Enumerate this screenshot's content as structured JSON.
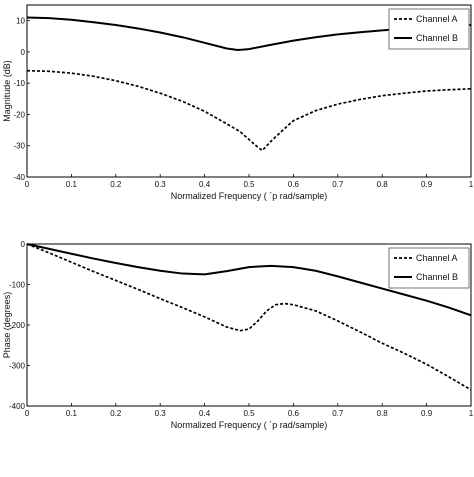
{
  "chart_data": [
    {
      "type": "line",
      "xlabel": "Normalized Frequency (  ´p rad/sample)",
      "ylabel": "Magnitude (dB)",
      "xlim": [
        0,
        1
      ],
      "ylim": [
        -40,
        15
      ],
      "x_ticks": [
        "0",
        "0.1",
        "0.2",
        "0.3",
        "0.4",
        "0.5",
        "0.6",
        "0.7",
        "0.8",
        "0.9",
        "1"
      ],
      "y_ticks": [
        "10",
        "0",
        "-10",
        "-20",
        "-30",
        "-40"
      ],
      "y_tick_values": [
        10,
        0,
        -10,
        -20,
        -30,
        -40
      ],
      "grid": false,
      "legend_position": "top-right",
      "series": [
        {
          "name": "Channel A",
          "style": "dashed",
          "x": [
            0,
            0.05,
            0.1,
            0.15,
            0.2,
            0.25,
            0.3,
            0.35,
            0.4,
            0.45,
            0.48,
            0.5,
            0.52,
            0.53,
            0.55,
            0.58,
            0.6,
            0.65,
            0.7,
            0.75,
            0.8,
            0.85,
            0.9,
            0.95,
            1.0
          ],
          "y": [
            -6,
            -6.2,
            -6.8,
            -7.8,
            -9.2,
            -11,
            -13.2,
            -15.8,
            -19,
            -23,
            -25.5,
            -28,
            -30.5,
            -31.5,
            -28.5,
            -24.5,
            -22,
            -18.8,
            -16.7,
            -15.2,
            -14,
            -13.2,
            -12.5,
            -12.1,
            -11.8
          ]
        },
        {
          "name": "Channel B",
          "style": "solid",
          "x": [
            0,
            0.05,
            0.1,
            0.15,
            0.2,
            0.25,
            0.3,
            0.35,
            0.4,
            0.45,
            0.475,
            0.5,
            0.55,
            0.6,
            0.65,
            0.7,
            0.75,
            0.8,
            0.85,
            0.9,
            0.95,
            1.0
          ],
          "y": [
            11,
            10.8,
            10.3,
            9.5,
            8.6,
            7.5,
            6.2,
            4.7,
            2.9,
            1.1,
            0.6,
            0.9,
            2.3,
            3.6,
            4.7,
            5.6,
            6.3,
            6.9,
            7.4,
            7.8,
            8.2,
            8.6
          ]
        }
      ]
    },
    {
      "type": "line",
      "xlabel": "Normalized Frequency (  ´p rad/sample)",
      "ylabel": "Phase (degrees)",
      "xlim": [
        0,
        1
      ],
      "ylim": [
        -400,
        0
      ],
      "x_ticks": [
        "0",
        "0.1",
        "0.2",
        "0.3",
        "0.4",
        "0.5",
        "0.6",
        "0.7",
        "0.8",
        "0.9",
        "1"
      ],
      "y_ticks": [
        "0",
        "-100",
        "-200",
        "-300",
        "-400"
      ],
      "y_tick_values": [
        0,
        -100,
        -200,
        -300,
        -400
      ],
      "grid": false,
      "legend_position": "top-right",
      "series": [
        {
          "name": "Channel A",
          "style": "dashed",
          "x": [
            0,
            0.05,
            0.1,
            0.15,
            0.2,
            0.25,
            0.3,
            0.35,
            0.4,
            0.45,
            0.48,
            0.5,
            0.52,
            0.54,
            0.56,
            0.58,
            0.6,
            0.65,
            0.7,
            0.75,
            0.8,
            0.85,
            0.9,
            0.95,
            1.0
          ],
          "y": [
            0,
            -22,
            -45,
            -68,
            -90,
            -112,
            -135,
            -157,
            -180,
            -205,
            -214,
            -210,
            -190,
            -165,
            -150,
            -147,
            -150,
            -165,
            -190,
            -217,
            -245,
            -270,
            -297,
            -328,
            -360
          ]
        },
        {
          "name": "Channel B",
          "style": "solid",
          "x": [
            0,
            0.05,
            0.1,
            0.15,
            0.2,
            0.25,
            0.3,
            0.35,
            0.4,
            0.45,
            0.5,
            0.55,
            0.6,
            0.65,
            0.7,
            0.75,
            0.8,
            0.85,
            0.9,
            0.95,
            1.0
          ],
          "y": [
            0,
            -12,
            -24,
            -36,
            -47,
            -57,
            -66,
            -73,
            -75,
            -67,
            -57,
            -54,
            -57,
            -66,
            -80,
            -95,
            -110,
            -125,
            -140,
            -157,
            -176
          ]
        }
      ]
    }
  ]
}
